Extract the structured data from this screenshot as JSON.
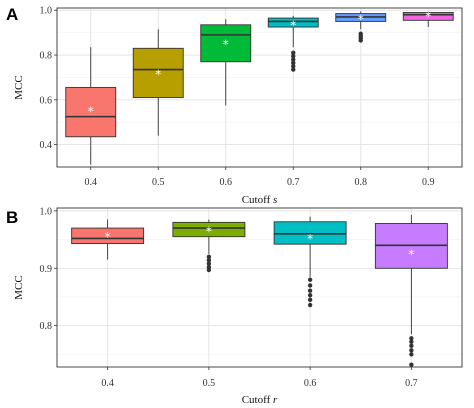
{
  "chart_data": [
    {
      "panel": "A",
      "type": "box",
      "xlabel_prefix": "Cutoff ",
      "xlabel_var": "s",
      "ylabel": "MCC",
      "ylim": [
        0.3,
        1.01
      ],
      "yticks": [
        0.4,
        0.6,
        0.8,
        1.0
      ],
      "ytick_labels": [
        "0.4",
        "0.6",
        "0.8",
        "1.0"
      ],
      "grid": true,
      "categories": [
        "0.4",
        "0.5",
        "0.6",
        "0.7",
        "0.8",
        "0.9"
      ],
      "boxes": [
        {
          "category": "0.4",
          "whisker_low": 0.31,
          "q1": 0.435,
          "median": 0.525,
          "q3": 0.655,
          "whisker_high": 0.835,
          "mean": 0.55,
          "outliers": [],
          "color": "#F8766D"
        },
        {
          "category": "0.5",
          "whisker_low": 0.44,
          "q1": 0.61,
          "median": 0.735,
          "q3": 0.83,
          "whisker_high": 0.915,
          "mean": 0.715,
          "outliers": [],
          "color": "#B79F00"
        },
        {
          "category": "0.6",
          "whisker_low": 0.575,
          "q1": 0.77,
          "median": 0.89,
          "q3": 0.935,
          "whisker_high": 0.96,
          "mean": 0.85,
          "outliers": [],
          "color": "#00BA38"
        },
        {
          "category": "0.7",
          "whisker_low": 0.835,
          "q1": 0.925,
          "median": 0.95,
          "q3": 0.965,
          "whisker_high": 0.975,
          "mean": 0.935,
          "outliers": [
            0.735,
            0.75,
            0.765,
            0.78,
            0.795,
            0.81
          ],
          "color": "#00BFC4"
        },
        {
          "category": "0.8",
          "whisker_low": 0.915,
          "q1": 0.95,
          "median": 0.97,
          "q3": 0.985,
          "whisker_high": 0.995,
          "mean": 0.96,
          "outliers": [
            0.865,
            0.875,
            0.885,
            0.895
          ],
          "color": "#619CFF"
        },
        {
          "category": "0.9",
          "whisker_low": 0.925,
          "q1": 0.955,
          "median": 0.98,
          "q3": 0.99,
          "whisker_high": 0.995,
          "mean": 0.975,
          "outliers": [],
          "color": "#F564E3"
        }
      ]
    },
    {
      "panel": "B",
      "type": "box",
      "xlabel_prefix": "Cutoff ",
      "xlabel_var": "r",
      "ylabel": "MCC",
      "ylim": [
        0.728,
        1.005
      ],
      "yticks": [
        0.8,
        0.9,
        1.0
      ],
      "ytick_labels": [
        "0.8",
        "0.9",
        "1.0"
      ],
      "grid": true,
      "categories": [
        "0.4",
        "0.5",
        "0.6",
        "0.7"
      ],
      "boxes": [
        {
          "category": "0.4",
          "whisker_low": 0.915,
          "q1": 0.943,
          "median": 0.952,
          "q3": 0.97,
          "whisker_high": 0.985,
          "mean": 0.955,
          "outliers": [],
          "color": "#F8766D"
        },
        {
          "category": "0.5",
          "whisker_low": 0.925,
          "q1": 0.955,
          "median": 0.97,
          "q3": 0.98,
          "whisker_high": 0.985,
          "mean": 0.965,
          "outliers": [
            0.897,
            0.902,
            0.908,
            0.914,
            0.92
          ],
          "color": "#7CAE00"
        },
        {
          "category": "0.6",
          "whisker_low": 0.885,
          "q1": 0.942,
          "median": 0.96,
          "q3": 0.981,
          "whisker_high": 0.99,
          "mean": 0.952,
          "outliers": [
            0.836,
            0.845,
            0.853,
            0.861,
            0.87,
            0.88
          ],
          "color": "#00BFC4"
        },
        {
          "category": "0.7",
          "whisker_low": 0.785,
          "q1": 0.9,
          "median": 0.94,
          "q3": 0.978,
          "whisker_high": 0.993,
          "mean": 0.925,
          "outliers": [
            0.732,
            0.75,
            0.757,
            0.765,
            0.772,
            0.778
          ],
          "color": "#C77CFF"
        }
      ]
    }
  ]
}
